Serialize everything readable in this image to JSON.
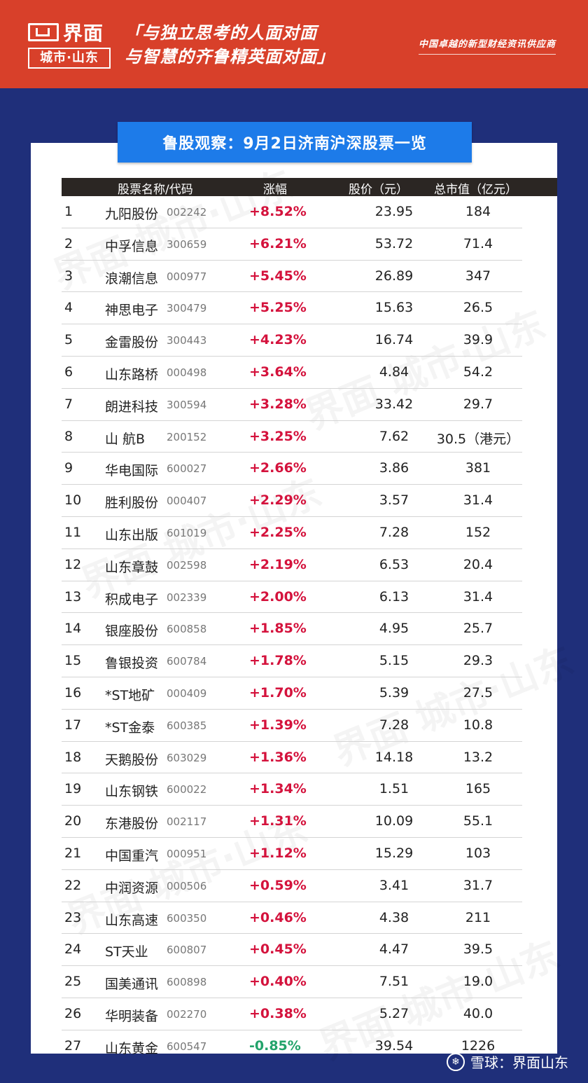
{
  "header": {
    "logo_main": "界面",
    "logo_sub": "城市·山东",
    "slogan_line1": "「与独立思考的人面对面",
    "slogan_line2": "与智慧的齐鲁精英面对面」",
    "tagline": "中国卓越的新型财经资讯供应商",
    "brand_color": "#d8402a"
  },
  "title": "鲁股观察：9月2日济南沪深股票一览",
  "table": {
    "columns": [
      "股票名称/代码",
      "涨幅",
      "股价（元）",
      "总市值（亿元）"
    ],
    "rows": [
      {
        "idx": "1",
        "name": "九阳股份",
        "code": "002242",
        "change": "+8.52%",
        "price": "23.95",
        "cap": "184"
      },
      {
        "idx": "2",
        "name": "中孚信息",
        "code": "300659",
        "change": "+6.21%",
        "price": "53.72",
        "cap": "71.4"
      },
      {
        "idx": "3",
        "name": "浪潮信息",
        "code": "000977",
        "change": "+5.45%",
        "price": "26.89",
        "cap": "347"
      },
      {
        "idx": "4",
        "name": "神思电子",
        "code": "300479",
        "change": "+5.25%",
        "price": "15.63",
        "cap": "26.5"
      },
      {
        "idx": "5",
        "name": "金雷股份",
        "code": "300443",
        "change": "+4.23%",
        "price": "16.74",
        "cap": "39.9"
      },
      {
        "idx": "6",
        "name": "山东路桥",
        "code": "000498",
        "change": "+3.64%",
        "price": "4.84",
        "cap": "54.2"
      },
      {
        "idx": "7",
        "name": "朗进科技",
        "code": "300594",
        "change": "+3.28%",
        "price": "33.42",
        "cap": "29.7"
      },
      {
        "idx": "8",
        "name": "山 航B",
        "code": "200152",
        "change": "+3.25%",
        "price": "7.62",
        "cap": "30.5（港元）"
      },
      {
        "idx": "9",
        "name": "华电国际",
        "code": "600027",
        "change": "+2.66%",
        "price": "3.86",
        "cap": "381"
      },
      {
        "idx": "10",
        "name": "胜利股份",
        "code": "000407",
        "change": "+2.29%",
        "price": "3.57",
        "cap": "31.4"
      },
      {
        "idx": "11",
        "name": "山东出版",
        "code": "601019",
        "change": "+2.25%",
        "price": "7.28",
        "cap": "152"
      },
      {
        "idx": "12",
        "name": "山东章鼓",
        "code": "002598",
        "change": "+2.19%",
        "price": "6.53",
        "cap": "20.4"
      },
      {
        "idx": "13",
        "name": "积成电子",
        "code": "002339",
        "change": "+2.00%",
        "price": "6.13",
        "cap": "31.4"
      },
      {
        "idx": "14",
        "name": "银座股份",
        "code": "600858",
        "change": "+1.85%",
        "price": "4.95",
        "cap": "25.7"
      },
      {
        "idx": "15",
        "name": "鲁银投资",
        "code": "600784",
        "change": "+1.78%",
        "price": "5.15",
        "cap": "29.3"
      },
      {
        "idx": "16",
        "name": "*ST地矿",
        "code": "000409",
        "change": "+1.70%",
        "price": "5.39",
        "cap": "27.5"
      },
      {
        "idx": "17",
        "name": "*ST金泰",
        "code": "600385",
        "change": "+1.39%",
        "price": "7.28",
        "cap": "10.8"
      },
      {
        "idx": "18",
        "name": "天鹅股份",
        "code": "603029",
        "change": "+1.36%",
        "price": "14.18",
        "cap": "13.2"
      },
      {
        "idx": "19",
        "name": "山东钢铁",
        "code": "600022",
        "change": "+1.34%",
        "price": "1.51",
        "cap": "165"
      },
      {
        "idx": "20",
        "name": "东港股份",
        "code": "002117",
        "change": "+1.31%",
        "price": "10.09",
        "cap": "55.1"
      },
      {
        "idx": "21",
        "name": "中国重汽",
        "code": "000951",
        "change": "+1.12%",
        "price": "15.29",
        "cap": "103"
      },
      {
        "idx": "22",
        "name": "中润资源",
        "code": "000506",
        "change": "+0.59%",
        "price": "3.41",
        "cap": "31.7"
      },
      {
        "idx": "23",
        "name": "山东高速",
        "code": "600350",
        "change": "+0.46%",
        "price": "4.38",
        "cap": "211"
      },
      {
        "idx": "24",
        "name": "ST天业",
        "code": "600807",
        "change": "+0.45%",
        "price": "4.47",
        "cap": "39.5"
      },
      {
        "idx": "25",
        "name": "国美通讯",
        "code": "600898",
        "change": "+0.40%",
        "price": "7.51",
        "cap": "19.0"
      },
      {
        "idx": "26",
        "name": "华明装备",
        "code": "002270",
        "change": "+0.38%",
        "price": "5.27",
        "cap": "40.0"
      },
      {
        "idx": "27",
        "name": "山东黄金",
        "code": "600547",
        "change": "-0.85%",
        "price": "39.54",
        "cap": "1226"
      }
    ]
  },
  "footer": {
    "credit": "雪球：界面山东",
    "icon": "snowball-icon"
  },
  "colors": {
    "background": "#1f2f7a",
    "banner": "#1d7be9",
    "up": "#d4123c",
    "down": "#23a36b"
  }
}
